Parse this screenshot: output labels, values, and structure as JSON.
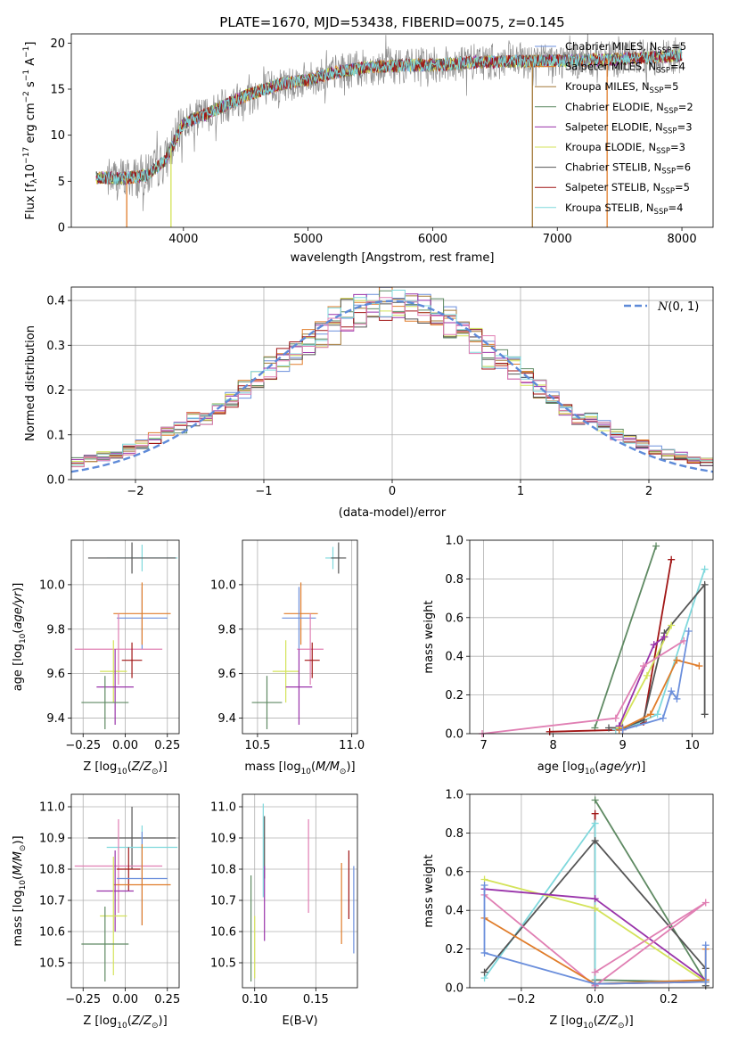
{
  "figure_title": "PLATE=1670, MJD=53438, FIBERID=0075, z=0.145",
  "colors": {
    "Chabrier MILES": "#6b8fdc",
    "Salpeter MILES": "#e07d2b",
    "Kroupa MILES": "#a47a3a",
    "Chabrier ELODIE": "#5f8a63",
    "Salpeter ELODIE": "#9933aa",
    "Kroupa ELODIE": "#d4e35a",
    "Chabrier STELIB": "#555555",
    "Salpeter STELIB": "#a11616",
    "Kroupa STELIB": "#7fd8dc",
    "pink": "#e07fb3",
    "gray": "#8c8c8c"
  },
  "chart_data": [
    {
      "id": "spectrum",
      "type": "line",
      "title": "PLATE=1670, MJD=53438, FIBERID=0075, z=0.145",
      "xlabel": "wavelength [Angstrom, rest frame]",
      "ylabel": "Flux [f",
      "ylabel_parts": [
        "Flux [f",
        "λ",
        "10",
        "−17",
        " erg cm",
        "−2",
        " s",
        "−1",
        " A",
        "−1",
        "]"
      ],
      "xlim": [
        3100,
        8250
      ],
      "ylim": [
        0,
        21
      ],
      "xticks": [
        4000,
        5000,
        6000,
        7000,
        8000
      ],
      "yticks": [
        0,
        5,
        10,
        15,
        20
      ],
      "legend_position": "top-right",
      "legend": [
        {
          "label": "Chabrier MILES, N",
          "sub": "SSP",
          "tail": "=5",
          "color": "#6b8fdc"
        },
        {
          "label": "Salpeter MILES, N",
          "sub": "SSP",
          "tail": "=4",
          "color": "#e07d2b"
        },
        {
          "label": "Kroupa MILES, N",
          "sub": "SSP",
          "tail": "=5",
          "color": "#a47a3a"
        },
        {
          "label": "Chabrier ELODIE, N",
          "sub": "SSP",
          "tail": "=2",
          "color": "#5f8a63"
        },
        {
          "label": "Salpeter ELODIE, N",
          "sub": "SSP",
          "tail": "=3",
          "color": "#9933aa"
        },
        {
          "label": "Kroupa ELODIE, N",
          "sub": "SSP",
          "tail": "=3",
          "color": "#d4e35a"
        },
        {
          "label": "Chabrier STELIB, N",
          "sub": "SSP",
          "tail": "=6",
          "color": "#555555"
        },
        {
          "label": "Salpeter STELIB, N",
          "sub": "SSP",
          "tail": "=5",
          "color": "#a11616"
        },
        {
          "label": "Kroupa STELIB, N",
          "sub": "SSP",
          "tail": "=4",
          "color": "#7fd8dc"
        }
      ],
      "continuum": [
        [
          3300,
          5.4
        ],
        [
          3500,
          5.3
        ],
        [
          3700,
          5.6
        ],
        [
          3850,
          7.2
        ],
        [
          4000,
          11.3
        ],
        [
          4200,
          12.4
        ],
        [
          4500,
          14.3
        ],
        [
          4800,
          15.6
        ],
        [
          5000,
          16.0
        ],
        [
          5200,
          16.8
        ],
        [
          5500,
          17.4
        ],
        [
          5800,
          17.6
        ],
        [
          6000,
          17.6
        ],
        [
          6300,
          17.9
        ],
        [
          6600,
          18.0
        ],
        [
          7000,
          18.1
        ],
        [
          7400,
          18.2
        ],
        [
          7700,
          18.4
        ],
        [
          8000,
          18.7
        ]
      ],
      "data_noise_amplitude": 2.0,
      "model_noise_amplitude": 0.7,
      "cutoffs": [
        {
          "series": "Salpeter MILES",
          "x": 3545,
          "color": "#e07d2b"
        },
        {
          "series": "Kroupa ELODIE",
          "x": 3900,
          "color": "#d4e35a"
        },
        {
          "series": "Kroupa MILES",
          "x": 6800,
          "color": "#a47a3a"
        },
        {
          "series": "Salpeter MILES",
          "x": 7400,
          "color": "#e07d2b"
        }
      ]
    },
    {
      "id": "residuals",
      "type": "histogram",
      "xlabel": "(data-model)/error",
      "ylabel": "Normed distribution",
      "xlim": [
        -2.5,
        2.5
      ],
      "ylim": [
        0,
        0.43
      ],
      "xticks": [
        -2,
        -1,
        0,
        1,
        2
      ],
      "yticks": [
        0.0,
        0.1,
        0.2,
        0.3,
        0.4
      ],
      "legend_position": "top-right",
      "legend_label": "N(0, 1)",
      "bin_width": 0.1,
      "bin_start": -2.5,
      "gaussian": {
        "mean": 0,
        "sigma": 1,
        "color": "#5e8ad8"
      }
    },
    {
      "id": "age-vs-Z",
      "type": "errorbar",
      "xlabel": "Z [log10(Z/Z☉)]",
      "ylabel": "age [log10(age/yr)]",
      "xlim": [
        -0.32,
        0.32
      ],
      "ylim": [
        9.33,
        10.2
      ],
      "xticks": [
        -0.25,
        0.0,
        0.25
      ],
      "yticks": [
        9.4,
        9.6,
        9.8,
        10.0
      ],
      "points": [
        {
          "series": "Chabrier MILES",
          "x": 0.1,
          "xerr": 0.15,
          "y": 9.85,
          "yerr": 0.14
        },
        {
          "series": "Salpeter MILES",
          "x": 0.1,
          "xerr": 0.17,
          "y": 9.87,
          "yerr": 0.14
        },
        {
          "series": "Kroupa STELIB",
          "x": 0.1,
          "xerr": 0.21,
          "y": 10.12,
          "yerr": 0.06
        },
        {
          "series": "Chabrier STELIB",
          "x": 0.04,
          "xerr": 0.26,
          "y": 10.12,
          "yerr": 0.07
        },
        {
          "series": "pink",
          "x": -0.04,
          "xerr": 0.26,
          "y": 9.71,
          "yerr": 0.16
        },
        {
          "series": "Salpeter STELIB",
          "x": 0.04,
          "xerr": 0.06,
          "y": 9.66,
          "yerr": 0.08
        },
        {
          "series": "Kroupa ELODIE",
          "x": -0.07,
          "xerr": 0.08,
          "y": 9.61,
          "yerr": 0.14
        },
        {
          "series": "Salpeter ELODIE",
          "x": -0.06,
          "xerr": 0.11,
          "y": 9.54,
          "yerr": 0.17
        },
        {
          "series": "Chabrier ELODIE",
          "x": -0.12,
          "xerr": 0.14,
          "y": 9.47,
          "yerr": 0.12
        }
      ]
    },
    {
      "id": "age-vs-mass",
      "type": "errorbar",
      "xlabel": "mass [log10(M/M☉)]",
      "ylabel": "",
      "xlim": [
        10.42,
        11.03
      ],
      "ylim": [
        9.33,
        10.2
      ],
      "xticks": [
        10.5,
        11.0
      ],
      "yticks": [
        9.4,
        9.6,
        9.8,
        10.0
      ],
      "points": [
        {
          "series": "Kroupa STELIB",
          "x": 10.9,
          "xerr": 0.04,
          "y": 10.12,
          "yerr": 0.05
        },
        {
          "series": "Chabrier STELIB",
          "x": 10.93,
          "xerr": 0.04,
          "y": 10.12,
          "yerr": 0.07
        },
        {
          "series": "Salpeter MILES",
          "x": 10.73,
          "xerr": 0.09,
          "y": 9.87,
          "yerr": 0.14
        },
        {
          "series": "Chabrier MILES",
          "x": 10.72,
          "xerr": 0.09,
          "y": 9.85,
          "yerr": 0.14
        },
        {
          "series": "pink",
          "x": 10.78,
          "xerr": 0.07,
          "y": 9.71,
          "yerr": 0.16
        },
        {
          "series": "Salpeter STELIB",
          "x": 10.79,
          "xerr": 0.04,
          "y": 9.66,
          "yerr": 0.08
        },
        {
          "series": "Kroupa ELODIE",
          "x": 10.65,
          "xerr": 0.07,
          "y": 9.61,
          "yerr": 0.14
        },
        {
          "series": "Salpeter ELODIE",
          "x": 10.72,
          "xerr": 0.07,
          "y": 9.54,
          "yerr": 0.17
        },
        {
          "series": "Chabrier ELODIE",
          "x": 10.55,
          "xerr": 0.08,
          "y": 9.47,
          "yerr": 0.12
        }
      ]
    },
    {
      "id": "massweight-vs-age",
      "type": "line",
      "xlabel": "age [log10(age/yr)]",
      "ylabel": "mass weight",
      "xlim": [
        6.8,
        10.3
      ],
      "ylim": [
        0,
        1.0
      ],
      "xticks": [
        7,
        8,
        9,
        10
      ],
      "yticks": [
        0.0,
        0.2,
        0.4,
        0.6,
        0.8,
        1.0
      ],
      "series": [
        {
          "name": "Chabrier ELODIE",
          "x": [
            8.6,
            9.48
          ],
          "y": [
            0.03,
            0.97
          ]
        },
        {
          "name": "Salpeter STELIB",
          "x": [
            7.95,
            9.0,
            9.3,
            9.7
          ],
          "y": [
            0.01,
            0.02,
            0.06,
            0.9
          ]
        },
        {
          "name": "Kroupa STELIB",
          "x": [
            8.9,
            9.2,
            9.5,
            10.18
          ],
          "y": [
            0.02,
            0.05,
            0.1,
            0.85
          ]
        },
        {
          "name": "Chabrier STELIB",
          "x": [
            8.8,
            9.0,
            9.3,
            9.6,
            10.18,
            10.18
          ],
          "y": [
            0.03,
            0.03,
            0.07,
            0.52,
            0.77,
            0.1
          ]
        },
        {
          "name": "Kroupa ELODIE",
          "x": [
            8.95,
            9.35,
            9.7
          ],
          "y": [
            0.03,
            0.3,
            0.56
          ]
        },
        {
          "name": "Salpeter ELODIE",
          "x": [
            8.95,
            9.45,
            9.6
          ],
          "y": [
            0.04,
            0.46,
            0.5
          ]
        },
        {
          "name": "pink",
          "x": [
            6.98,
            8.9,
            9.3,
            9.88
          ],
          "y": [
            0.0,
            0.08,
            0.35,
            0.48
          ]
        },
        {
          "name": "Salpeter MILES",
          "x": [
            8.95,
            9.4,
            9.78,
            10.1
          ],
          "y": [
            0.02,
            0.1,
            0.38,
            0.35
          ]
        },
        {
          "name": "Chabrier MILES",
          "x": [
            9.0,
            9.58,
            9.7,
            9.78,
            9.95
          ],
          "y": [
            0.02,
            0.08,
            0.22,
            0.18,
            0.53
          ]
        }
      ]
    },
    {
      "id": "mass-vs-Z",
      "type": "errorbar",
      "xlabel": "Z [log10(Z/Z☉)]",
      "ylabel": "mass [log10(M/M☉)]",
      "xlim": [
        -0.32,
        0.32
      ],
      "ylim": [
        10.42,
        11.04
      ],
      "xticks": [
        -0.25,
        0.0,
        0.25
      ],
      "yticks": [
        10.5,
        10.6,
        10.7,
        10.8,
        10.9,
        11.0
      ],
      "points": [
        {
          "series": "Chabrier STELIB",
          "x": 0.04,
          "xerr": 0.26,
          "y": 10.9,
          "yerr": 0.1
        },
        {
          "series": "Kroupa STELIB",
          "x": 0.1,
          "xerr": 0.21,
          "y": 10.87,
          "yerr": 0.07
        },
        {
          "series": "pink",
          "x": -0.04,
          "xerr": 0.26,
          "y": 10.81,
          "yerr": 0.15
        },
        {
          "series": "Salpeter STELIB",
          "x": 0.02,
          "xerr": 0.07,
          "y": 10.8,
          "yerr": 0.07
        },
        {
          "series": "Chabrier MILES",
          "x": 0.1,
          "xerr": 0.15,
          "y": 10.77,
          "yerr": 0.15
        },
        {
          "series": "Salpeter MILES",
          "x": 0.1,
          "xerr": 0.17,
          "y": 10.75,
          "yerr": 0.13
        },
        {
          "series": "Salpeter ELODIE",
          "x": -0.06,
          "xerr": 0.11,
          "y": 10.73,
          "yerr": 0.13
        },
        {
          "series": "Kroupa ELODIE",
          "x": -0.07,
          "xerr": 0.08,
          "y": 10.65,
          "yerr": 0.19
        },
        {
          "series": "Chabrier ELODIE",
          "x": -0.12,
          "xerr": 0.14,
          "y": 10.56,
          "yerr": 0.12
        }
      ]
    },
    {
      "id": "mass-vs-EBV",
      "type": "errorbar",
      "xlabel": "E(B-V)",
      "ylabel": "",
      "xlim": [
        0.09,
        0.184
      ],
      "ylim": [
        10.42,
        11.04
      ],
      "xticks": [
        0.1,
        0.15
      ],
      "yticks": [
        10.5,
        10.6,
        10.7,
        10.8,
        10.9,
        11.0
      ],
      "points": [
        {
          "series": "Chabrier ELODIE",
          "x": 0.097,
          "y": 10.61,
          "yerr": 0.17
        },
        {
          "series": "Kroupa ELODIE",
          "x": 0.1,
          "y": 10.55,
          "yerr": 0.1
        },
        {
          "series": "Kroupa STELIB",
          "x": 0.107,
          "y": 10.86,
          "yerr": 0.15
        },
        {
          "series": "Chabrier STELIB",
          "x": 0.108,
          "y": 10.87,
          "yerr": 0.1
        },
        {
          "series": "Salpeter ELODIE",
          "x": 0.108,
          "y": 10.69,
          "yerr": 0.12
        },
        {
          "series": "pink",
          "x": 0.144,
          "y": 10.81,
          "yerr": 0.15
        },
        {
          "series": "Salpeter MILES",
          "x": 0.171,
          "y": 10.69,
          "yerr": 0.13
        },
        {
          "series": "Salpeter STELIB",
          "x": 0.177,
          "y": 10.75,
          "yerr": 0.11
        },
        {
          "series": "Chabrier MILES",
          "x": 0.181,
          "y": 10.67,
          "yerr": 0.14
        }
      ]
    },
    {
      "id": "massweight-vs-Z",
      "type": "line",
      "xlabel": "Z [log10(Z/Z☉)]",
      "ylabel": "mass weight",
      "xlim": [
        -0.34,
        0.32
      ],
      "ylim": [
        0,
        1.0
      ],
      "xticks": [
        -0.2,
        0.0,
        0.2
      ],
      "yticks": [
        0.0,
        0.2,
        0.4,
        0.6,
        0.8,
        1.0
      ],
      "series": [
        {
          "name": "Chabrier ELODIE",
          "x": [
            0.0,
            0.3,
            0.0,
            0.0
          ],
          "y": [
            0.97,
            0.03,
            0.04,
            0.01
          ]
        },
        {
          "name": "Salpeter STELIB",
          "x": [
            0.0,
            0.0,
            0.3
          ],
          "y": [
            0.9,
            0.02,
            0.03
          ]
        },
        {
          "name": "Kroupa STELIB",
          "x": [
            -0.3,
            0.0,
            0.0,
            0.3
          ],
          "y": [
            0.05,
            0.85,
            0.02,
            0.04
          ]
        },
        {
          "name": "Chabrier STELIB",
          "x": [
            -0.3,
            0.0,
            0.3,
            0.3
          ],
          "y": [
            0.08,
            0.76,
            0.1,
            0.01
          ]
        },
        {
          "name": "Kroupa ELODIE",
          "x": [
            -0.3,
            0.0,
            0.3
          ],
          "y": [
            0.56,
            0.41,
            0.03
          ]
        },
        {
          "name": "Salpeter ELODIE",
          "x": [
            -0.3,
            0.0,
            0.3
          ],
          "y": [
            0.51,
            0.46,
            0.04
          ]
        },
        {
          "name": "pink",
          "x": [
            -0.3,
            0.0,
            0.3,
            0.0
          ],
          "y": [
            0.48,
            0.01,
            0.44,
            0.08
          ]
        },
        {
          "name": "Salpeter MILES",
          "x": [
            -0.3,
            0.0,
            0.3,
            0.3
          ],
          "y": [
            0.36,
            0.02,
            0.04,
            0.2
          ]
        },
        {
          "name": "Chabrier MILES",
          "x": [
            -0.3,
            -0.3,
            0.0,
            0.3,
            0.3
          ],
          "y": [
            0.53,
            0.18,
            0.02,
            0.03,
            0.22
          ]
        }
      ]
    }
  ]
}
